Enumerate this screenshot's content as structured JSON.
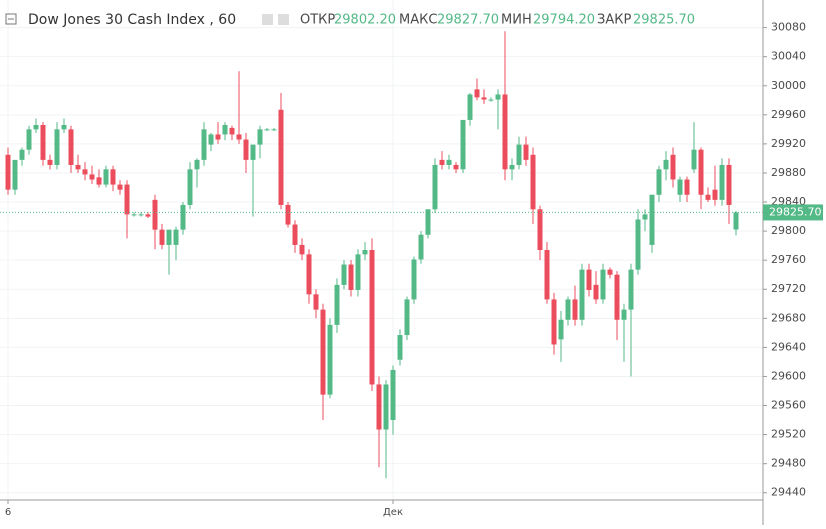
{
  "header": {
    "title": "Dow Jones 30 Cash Index , 60",
    "open_label": "ОТКР",
    "open": "29802.20",
    "high_label": "МАКС",
    "high": "29827.70",
    "low_label": "МИН",
    "low": "29794.20",
    "close_label": "ЗАКР",
    "close": "29825.70"
  },
  "chart_data": {
    "type": "candlestick",
    "up_color": "#53b987",
    "down_color": "#eb4d5c",
    "grid": true,
    "ylim": [
      29430,
      30118
    ],
    "yticks": [
      29440,
      29480,
      29520,
      29560,
      29600,
      29640,
      29680,
      29720,
      29760,
      29800,
      29840,
      29880,
      29920,
      29960,
      30000,
      30040,
      30080
    ],
    "current_price": {
      "value": 29825.7,
      "label": "29825.70"
    },
    "categories": [
      "6",
      null,
      null,
      null,
      null,
      null,
      null,
      null,
      null,
      null,
      null,
      null,
      null,
      null,
      null,
      null,
      null,
      null,
      null,
      null,
      null,
      null,
      null,
      null,
      null,
      null,
      null,
      null,
      null,
      null,
      null,
      null,
      null,
      null,
      null,
      null,
      null,
      null,
      null,
      null,
      null,
      null,
      null,
      null,
      null,
      null,
      null,
      null,
      null,
      null,
      null,
      null,
      null,
      null,
      null,
      "Дек",
      null,
      null,
      null,
      null,
      null,
      null,
      null,
      null,
      null,
      null,
      null,
      null,
      null,
      null,
      null,
      null,
      null,
      null,
      null,
      null,
      null,
      null,
      null,
      null,
      null,
      null,
      null,
      null,
      null,
      null,
      null,
      null,
      null,
      null,
      null,
      null,
      null,
      null,
      null,
      null,
      null,
      null,
      null,
      null,
      null,
      null,
      null,
      null,
      null
    ],
    "ohlc": [
      [
        29905,
        29915,
        29850,
        29857
      ],
      [
        29857,
        29895,
        29850,
        29898
      ],
      [
        29898,
        29915,
        29890,
        29912
      ],
      [
        29912,
        29945,
        29905,
        29940
      ],
      [
        29940,
        29955,
        29935,
        29946
      ],
      [
        29946,
        29950,
        29890,
        29898
      ],
      [
        29898,
        29905,
        29885,
        29891
      ],
      [
        29891,
        29950,
        29885,
        29940
      ],
      [
        29940,
        29955,
        29935,
        29946
      ],
      [
        29940,
        29945,
        29880,
        29891
      ],
      [
        29891,
        29905,
        29880,
        29885
      ],
      [
        29885,
        29895,
        29870,
        29878
      ],
      [
        29878,
        29890,
        29865,
        29871
      ],
      [
        29874,
        29885,
        29860,
        29864
      ],
      [
        29864,
        29890,
        29860,
        29885
      ],
      [
        29885,
        29890,
        29855,
        29864
      ],
      [
        29864,
        29870,
        29850,
        29857
      ],
      [
        29864,
        29870,
        29790,
        29823
      ],
      [
        29823,
        29826,
        29820,
        29823
      ],
      [
        29823,
        29826,
        29820,
        29823
      ],
      [
        29823,
        29826,
        29818,
        29820
      ],
      [
        29843,
        29850,
        29775,
        29802
      ],
      [
        29802,
        29810,
        29775,
        29781
      ],
      [
        29781,
        29800,
        29740,
        29802
      ],
      [
        29781,
        29806,
        29760,
        29802
      ],
      [
        29802,
        29840,
        29795,
        29836
      ],
      [
        29836,
        29895,
        29830,
        29885
      ],
      [
        29885,
        29900,
        29860,
        29898
      ],
      [
        29898,
        29950,
        29890,
        29940
      ],
      [
        29919,
        29935,
        29910,
        29933
      ],
      [
        29933,
        29950,
        29920,
        29926
      ],
      [
        29933,
        29950,
        29925,
        29946
      ],
      [
        29942,
        29945,
        29925,
        29933
      ],
      [
        29933,
        30020,
        29920,
        29926
      ],
      [
        29926,
        29935,
        29880,
        29898
      ],
      [
        29898,
        29915,
        29820,
        29919
      ],
      [
        29919,
        29945,
        29900,
        29940
      ],
      [
        29940,
        29942,
        29938,
        29940
      ],
      [
        29940,
        29942,
        29938,
        29940
      ],
      [
        29967,
        29990,
        29830,
        29836
      ],
      [
        29836,
        29840,
        29805,
        29809
      ],
      [
        29809,
        29815,
        29770,
        29781
      ],
      [
        29781,
        29790,
        29760,
        29768
      ],
      [
        29768,
        29775,
        29700,
        29713
      ],
      [
        29713,
        29720,
        29680,
        29692
      ],
      [
        29692,
        29700,
        29540,
        29575
      ],
      [
        29575,
        29680,
        29570,
        29671
      ],
      [
        29671,
        29735,
        29660,
        29726
      ],
      [
        29726,
        29760,
        29720,
        29754
      ],
      [
        29754,
        29760,
        29710,
        29719
      ],
      [
        29719,
        29775,
        29710,
        29768
      ],
      [
        29768,
        29785,
        29760,
        29774
      ],
      [
        29774,
        29790,
        29580,
        29589
      ],
      [
        29589,
        29600,
        29475,
        29527
      ],
      [
        29527,
        29595,
        29460,
        29589
      ],
      [
        29540,
        29615,
        29520,
        29609
      ],
      [
        29623,
        29665,
        29615,
        29657
      ],
      [
        29657,
        29710,
        29650,
        29706
      ],
      [
        29706,
        29765,
        29700,
        29761
      ],
      [
        29761,
        29800,
        29755,
        29795
      ],
      [
        29795,
        29830,
        29790,
        29830
      ],
      [
        29830,
        29900,
        29825,
        29891
      ],
      [
        29898,
        29910,
        29885,
        29891
      ],
      [
        29891,
        29905,
        29885,
        29898
      ],
      [
        29891,
        29895,
        29880,
        29885
      ],
      [
        29885,
        29950,
        29880,
        29953
      ],
      [
        29953,
        29990,
        29945,
        29988
      ],
      [
        29995,
        30010,
        29980,
        29984
      ],
      [
        29984,
        29995,
        29975,
        29981
      ],
      [
        29981,
        29984,
        29978,
        29981
      ],
      [
        29981,
        29995,
        29940,
        29988
      ],
      [
        29988,
        30075,
        29870,
        29885
      ],
      [
        29885,
        29900,
        29870,
        29891
      ],
      [
        29891,
        29930,
        29885,
        29919
      ],
      [
        29919,
        29930,
        29890,
        29898
      ],
      [
        29905,
        29915,
        29810,
        29830
      ],
      [
        29830,
        29835,
        29760,
        29774
      ],
      [
        29774,
        29785,
        29700,
        29706
      ],
      [
        29706,
        29715,
        29630,
        29644
      ],
      [
        29651,
        29690,
        29620,
        29678
      ],
      [
        29678,
        29710,
        29670,
        29706
      ],
      [
        29706,
        29725,
        29670,
        29678
      ],
      [
        29678,
        29755,
        29670,
        29747
      ],
      [
        29747,
        29755,
        29710,
        29719
      ],
      [
        29726,
        29745,
        29700,
        29706
      ],
      [
        29706,
        29755,
        29700,
        29747
      ],
      [
        29747,
        29750,
        29735,
        29740
      ],
      [
        29740,
        29745,
        29650,
        29678
      ],
      [
        29678,
        29700,
        29620,
        29692
      ],
      [
        29692,
        29755,
        29600,
        29747
      ],
      [
        29747,
        29830,
        29740,
        29816
      ],
      [
        29816,
        29830,
        29800,
        29823
      ],
      [
        29781,
        29850,
        29770,
        29850
      ],
      [
        29850,
        29890,
        29840,
        29885
      ],
      [
        29885,
        29910,
        29870,
        29898
      ],
      [
        29905,
        29915,
        29860,
        29871
      ],
      [
        29850,
        29875,
        29840,
        29871
      ],
      [
        29871,
        29875,
        29840,
        29850
      ],
      [
        29885,
        29950,
        29880,
        29912
      ],
      [
        29912,
        29915,
        29830,
        29850
      ],
      [
        29850,
        29860,
        29840,
        29843
      ],
      [
        29857,
        29890,
        29835,
        29843
      ],
      [
        29843,
        29900,
        29835,
        29891
      ],
      [
        29891,
        29900,
        29810,
        29836
      ],
      [
        29802.2,
        29827.7,
        29794.2,
        29825.7
      ]
    ]
  }
}
